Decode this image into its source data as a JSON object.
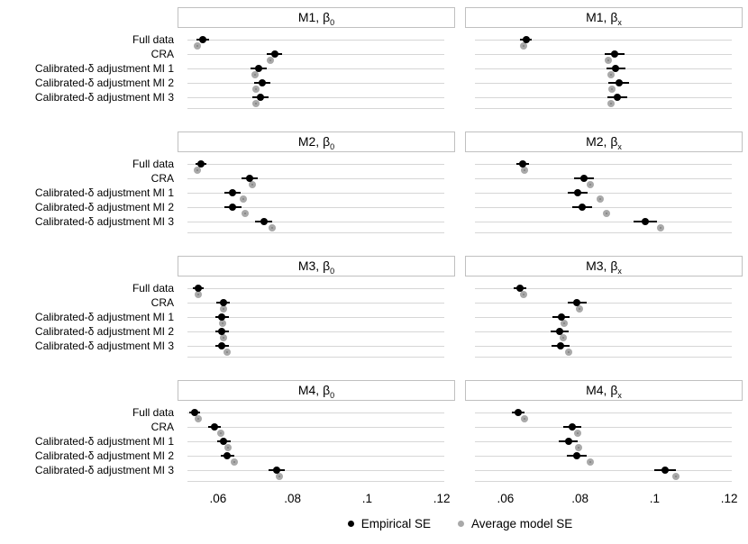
{
  "figure_title": "Standard error comparison dot plot, 4x2 panel grid",
  "chart_data": {
    "type": "scatter",
    "layout": "small-multiples 4 rows x 2 columns, horizontal dot-and-CI plot",
    "categories": [
      "Full data",
      "CRA",
      "Calibrated-δ adjustment MI 1",
      "Calibrated-δ adjustment MI 2",
      "Calibrated-δ adjustment MI 3"
    ],
    "x_axis": {
      "ticks": [
        0.06,
        0.08,
        0.1,
        0.12
      ],
      "tick_labels": [
        ".06",
        ".08",
        ".1",
        ".12"
      ],
      "range": [
        0.0518,
        0.1207
      ],
      "grid": "horizontal light-gray category lines"
    },
    "legend": [
      {
        "label": "Empirical SE",
        "color": "#000000"
      },
      {
        "label": "Average model SE",
        "color": "#a9a9a9"
      }
    ],
    "panels": [
      {
        "title_main": "M1, β",
        "title_sub": "0",
        "empirical_se": [
          0.0559,
          0.0752,
          0.0709,
          0.0719,
          0.0714
        ],
        "ci_halfwidth": [
          0.0016,
          0.0021,
          0.0022,
          0.0021,
          0.0022
        ],
        "average_model_se": [
          0.0544,
          0.074,
          0.0699,
          0.0702,
          0.0702
        ]
      },
      {
        "title_main": "M1, β",
        "title_sub": "x",
        "empirical_se": [
          0.0655,
          0.0892,
          0.0896,
          0.0904,
          0.09
        ],
        "ci_halfwidth": [
          0.0016,
          0.0027,
          0.0026,
          0.0027,
          0.0027
        ],
        "average_model_se": [
          0.0648,
          0.0877,
          0.0882,
          0.0886,
          0.0882
        ]
      },
      {
        "title_main": "M2, β",
        "title_sub": "0",
        "empirical_se": [
          0.0554,
          0.0685,
          0.0638,
          0.064,
          0.0723
        ],
        "ci_halfwidth": [
          0.0015,
          0.0022,
          0.0022,
          0.0022,
          0.0023
        ],
        "average_model_se": [
          0.0544,
          0.0692,
          0.0667,
          0.0673,
          0.0745
        ]
      },
      {
        "title_main": "M2, β",
        "title_sub": "x",
        "empirical_se": [
          0.0645,
          0.0811,
          0.0793,
          0.0806,
          0.0975
        ],
        "ci_halfwidth": [
          0.0017,
          0.0027,
          0.0027,
          0.0027,
          0.0032
        ],
        "average_model_se": [
          0.065,
          0.0827,
          0.0853,
          0.0871,
          0.1016
        ]
      },
      {
        "title_main": "M3, β",
        "title_sub": "0",
        "empirical_se": [
          0.0547,
          0.0614,
          0.0611,
          0.0611,
          0.0611
        ],
        "ci_halfwidth": [
          0.0014,
          0.0018,
          0.0018,
          0.0018,
          0.0018
        ],
        "average_model_se": [
          0.0547,
          0.0615,
          0.0613,
          0.0615,
          0.0625
        ]
      },
      {
        "title_main": "M3, β",
        "title_sub": "x",
        "empirical_se": [
          0.0638,
          0.0792,
          0.0749,
          0.0746,
          0.0747
        ],
        "ci_halfwidth": [
          0.0017,
          0.0025,
          0.0024,
          0.0024,
          0.0024
        ],
        "average_model_se": [
          0.0649,
          0.0798,
          0.0757,
          0.0756,
          0.0769
        ]
      },
      {
        "title_main": "M4, β",
        "title_sub": "0",
        "empirical_se": [
          0.0538,
          0.059,
          0.0615,
          0.0625,
          0.0758
        ],
        "ci_halfwidth": [
          0.0015,
          0.0017,
          0.0018,
          0.0018,
          0.0022
        ],
        "average_model_se": [
          0.0548,
          0.0607,
          0.0627,
          0.0644,
          0.0765
        ]
      },
      {
        "title_main": "M4, β",
        "title_sub": "x",
        "empirical_se": [
          0.0634,
          0.0779,
          0.0769,
          0.0791,
          0.1028
        ],
        "ci_halfwidth": [
          0.0017,
          0.0025,
          0.0025,
          0.0027,
          0.003
        ],
        "average_model_se": [
          0.065,
          0.0793,
          0.0795,
          0.0827,
          0.1058
        ]
      }
    ]
  },
  "colors": {
    "empirical": "#000000",
    "model": "#a9a9a9",
    "gridline": "#d6d6d6",
    "panel_border": "#c0c0c0",
    "background": "#ffffff",
    "text": "#000000"
  }
}
